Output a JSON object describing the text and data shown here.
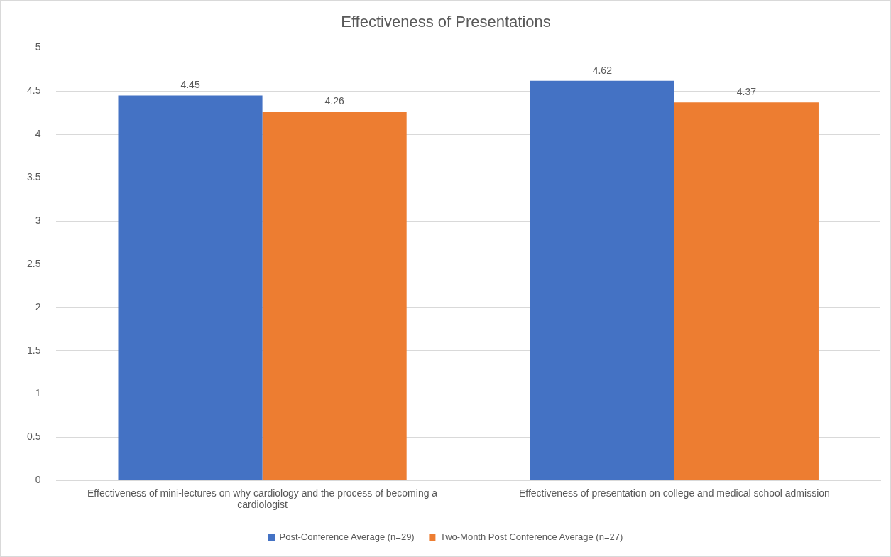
{
  "chart_data": {
    "type": "bar",
    "title": "Effectiveness of Presentations",
    "categories": [
      "Effectiveness of mini-lectures on why cardiology and the process of becoming a cardiologist",
      "Effectiveness of presentation on college and medical school admission"
    ],
    "series": [
      {
        "name": "Post-Conference Average (n=29)",
        "color": "#4472c4",
        "values": [
          4.45,
          4.62
        ]
      },
      {
        "name": "Two-Month Post Conference Average (n=27)",
        "color": "#ed7d31",
        "values": [
          4.26,
          4.37
        ]
      }
    ],
    "ylim": [
      0,
      5
    ],
    "yticks": [
      0,
      0.5,
      1,
      1.5,
      2,
      2.5,
      3,
      3.5,
      4,
      4.5,
      5
    ],
    "grid": "y",
    "legend": "bottom",
    "data_labels": true
  }
}
